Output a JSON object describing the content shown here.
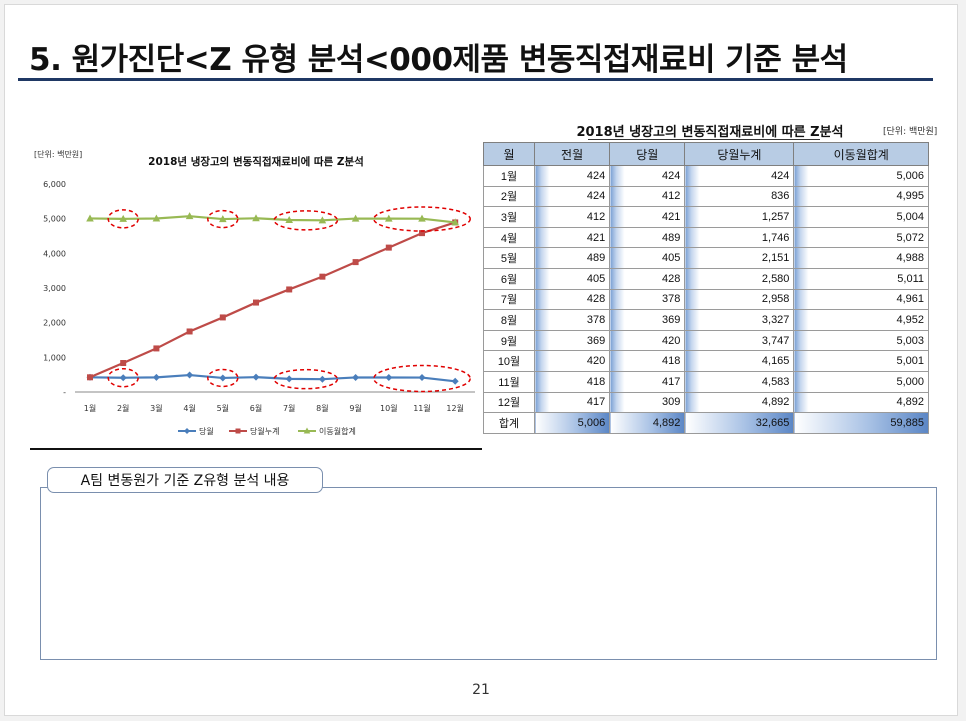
{
  "slide": {
    "title": "5. 원가진단<Z 유형 분석<000제품 변동직접재료비 기준 분석",
    "page_number": "21"
  },
  "chart_data": {
    "type": "line",
    "title": "2018년 냉장고의 변동직접재료비에 따른 Z분석",
    "unit_note": "[단위: 백만원]",
    "categories": [
      "1월",
      "2월",
      "3월",
      "4월",
      "5월",
      "6월",
      "7월",
      "8월",
      "9월",
      "10월",
      "11월",
      "12월"
    ],
    "ylim": [
      0,
      6000
    ],
    "yticks": [
      "6,000",
      "5,000",
      "4,000",
      "3,000",
      "2,000",
      "1,000",
      "-"
    ],
    "legend_position": "bottom",
    "series": [
      {
        "name": "당월",
        "color": "#4a7ebb",
        "marker": "diamond",
        "values": [
          424,
          412,
          421,
          489,
          405,
          428,
          378,
          369,
          420,
          418,
          417,
          309
        ]
      },
      {
        "name": "당월누계",
        "color": "#be4b48",
        "marker": "square",
        "values": [
          424,
          836,
          1257,
          1746,
          2151,
          2580,
          2958,
          3327,
          3747,
          4165,
          4583,
          4892
        ]
      },
      {
        "name": "이동월합계",
        "color": "#98b954",
        "marker": "triangle",
        "values": [
          5006,
          4995,
          5004,
          5072,
          4988,
          5011,
          4961,
          4952,
          5003,
          5001,
          5000,
          4892
        ]
      }
    ]
  },
  "table": {
    "title": "2018년 냉장고의 변동직접재료비에 따른 Z분석",
    "unit": "[단위: 백만원]",
    "headers": [
      "월",
      "전월",
      "당월",
      "당월누계",
      "이동월합계"
    ],
    "rows": [
      [
        "1월",
        "424",
        "424",
        "424",
        "5,006"
      ],
      [
        "2월",
        "424",
        "412",
        "836",
        "4,995"
      ],
      [
        "3월",
        "412",
        "421",
        "1,257",
        "5,004"
      ],
      [
        "4월",
        "421",
        "489",
        "1,746",
        "5,072"
      ],
      [
        "5월",
        "489",
        "405",
        "2,151",
        "4,988"
      ],
      [
        "6월",
        "405",
        "428",
        "2,580",
        "5,011"
      ],
      [
        "7월",
        "428",
        "378",
        "2,958",
        "4,961"
      ],
      [
        "8월",
        "378",
        "369",
        "3,327",
        "4,952"
      ],
      [
        "9월",
        "369",
        "420",
        "3,747",
        "5,003"
      ],
      [
        "10월",
        "420",
        "418",
        "4,165",
        "5,001"
      ],
      [
        "11월",
        "418",
        "417",
        "4,583",
        "5,000"
      ],
      [
        "12월",
        "417",
        "309",
        "4,892",
        "4,892"
      ]
    ],
    "total": [
      "합계",
      "5,006",
      "4,892",
      "32,665",
      "59,885"
    ]
  },
  "textbox": {
    "label": "A팀 변동원가 기준 Z유형 분석 내용"
  }
}
